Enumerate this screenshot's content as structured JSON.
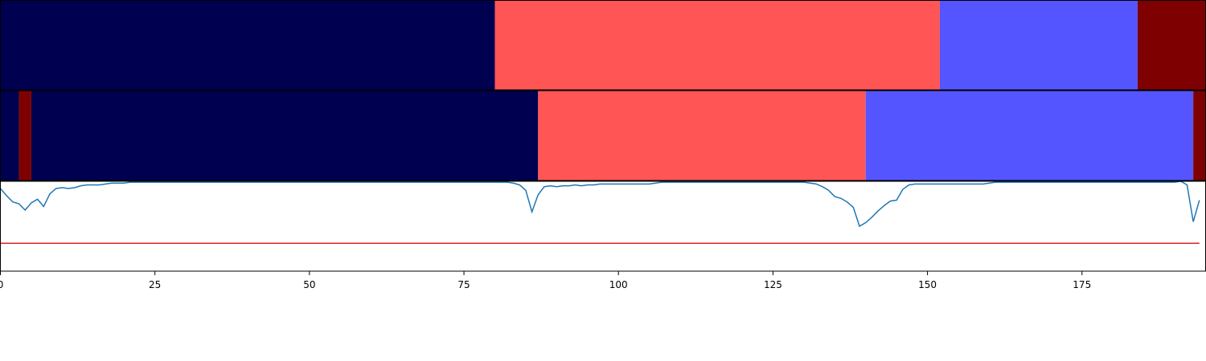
{
  "chart_data": {
    "type": "segmentation",
    "xlim": [
      0,
      195
    ],
    "xticks": [
      0,
      25,
      50,
      75,
      100,
      125,
      150,
      175
    ],
    "tracks": [
      {
        "segments": [
          {
            "start": 0,
            "end": 80,
            "color": "#000050"
          },
          {
            "start": 80,
            "end": 152,
            "color": "#ff5555"
          },
          {
            "start": 152,
            "end": 184,
            "color": "#5555ff"
          },
          {
            "start": 184,
            "end": 195,
            "color": "#7f0000"
          }
        ]
      },
      {
        "segments": [
          {
            "start": 0,
            "end": 3,
            "color": "#000050"
          },
          {
            "start": 3,
            "end": 5,
            "color": "#7f0000"
          },
          {
            "start": 5,
            "end": 87,
            "color": "#000050"
          },
          {
            "start": 87,
            "end": 140,
            "color": "#ff5555"
          },
          {
            "start": 140,
            "end": 193,
            "color": "#5555ff"
          },
          {
            "start": 193,
            "end": 195,
            "color": "#7f0000"
          }
        ]
      }
    ],
    "line": {
      "color": "#1f77b4",
      "ylim": [
        0,
        1
      ],
      "threshold": 0.31,
      "threshold_color": "#d62728",
      "values": [
        0.92,
        0.84,
        0.77,
        0.75,
        0.68,
        0.76,
        0.8,
        0.72,
        0.86,
        0.92,
        0.93,
        0.92,
        0.93,
        0.95,
        0.96,
        0.96,
        0.96,
        0.97,
        0.98,
        0.98,
        0.98,
        0.99,
        0.99,
        0.99,
        0.99,
        0.99,
        0.99,
        0.99,
        0.99,
        0.99,
        0.99,
        0.99,
        0.99,
        0.99,
        0.99,
        0.99,
        0.99,
        0.99,
        0.99,
        0.99,
        0.99,
        0.99,
        0.99,
        0.99,
        0.99,
        0.99,
        0.99,
        0.99,
        0.99,
        0.99,
        0.99,
        0.99,
        0.99,
        0.99,
        0.99,
        0.99,
        0.99,
        0.99,
        0.99,
        0.99,
        0.99,
        0.99,
        0.99,
        0.99,
        0.99,
        0.99,
        0.99,
        0.99,
        0.99,
        0.99,
        0.99,
        0.99,
        0.99,
        0.99,
        0.99,
        0.99,
        0.99,
        0.99,
        0.99,
        0.99,
        0.99,
        0.99,
        0.99,
        0.98,
        0.96,
        0.9,
        0.66,
        0.85,
        0.94,
        0.95,
        0.94,
        0.95,
        0.95,
        0.96,
        0.95,
        0.96,
        0.96,
        0.97,
        0.97,
        0.97,
        0.97,
        0.97,
        0.97,
        0.97,
        0.97,
        0.97,
        0.98,
        0.99,
        0.99,
        0.99,
        0.99,
        0.99,
        0.99,
        0.99,
        0.99,
        0.99,
        0.99,
        0.99,
        0.99,
        0.99,
        0.99,
        0.99,
        0.99,
        0.99,
        0.99,
        0.99,
        0.99,
        0.99,
        0.99,
        0.99,
        0.99,
        0.98,
        0.97,
        0.94,
        0.9,
        0.83,
        0.81,
        0.77,
        0.71,
        0.5,
        0.54,
        0.6,
        0.67,
        0.73,
        0.78,
        0.79,
        0.91,
        0.96,
        0.97,
        0.97,
        0.97,
        0.97,
        0.97,
        0.97,
        0.97,
        0.97,
        0.97,
        0.97,
        0.97,
        0.97,
        0.98,
        0.99,
        0.99,
        0.99,
        0.99,
        0.99,
        0.99,
        0.99,
        0.99,
        0.99,
        0.99,
        0.99,
        0.99,
        0.99,
        0.99,
        0.99,
        0.99,
        0.99,
        0.99,
        0.99,
        0.99,
        0.99,
        0.99,
        0.99,
        0.99,
        0.99,
        0.99,
        0.99,
        0.99,
        0.99,
        0.99,
        1.0,
        0.96,
        0.55,
        0.79
      ]
    }
  }
}
